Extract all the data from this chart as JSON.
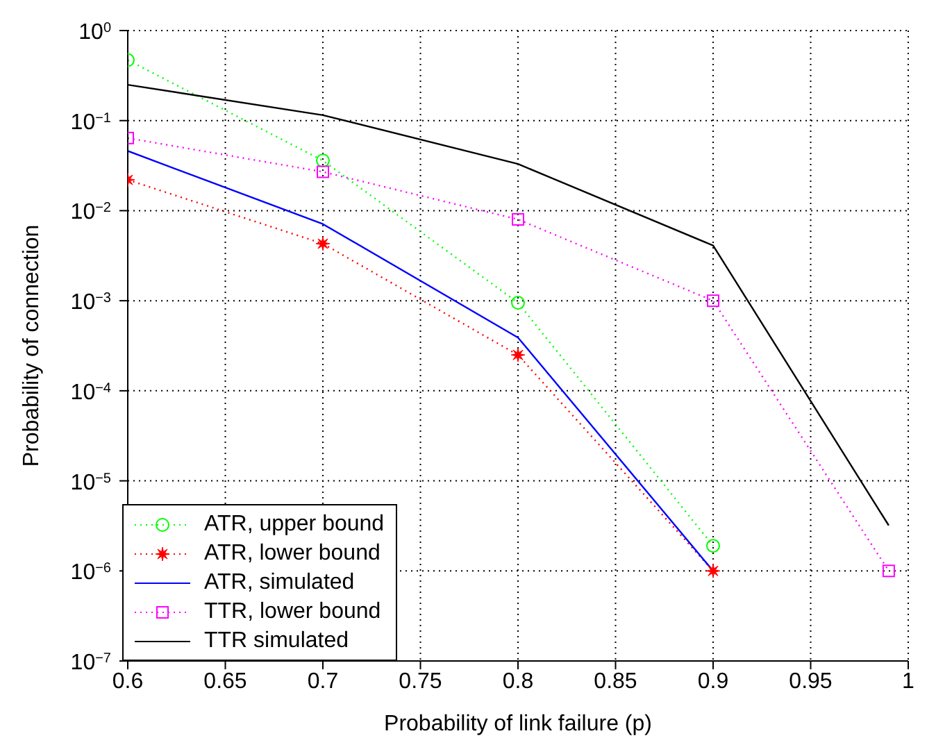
{
  "chart_data": {
    "type": "line",
    "xlabel": "Probability of link failure (p)",
    "ylabel": "Probability of connection",
    "log": "y",
    "grid": true,
    "legend": "bottom left",
    "xlim": [
      0.6,
      1
    ],
    "xticks": [
      0.6,
      0.65,
      0.7,
      0.75,
      0.8,
      0.85,
      0.9,
      0.95,
      1
    ],
    "ylim": [
      1e-07,
      1
    ],
    "yticks": [
      {
        "value": 1e-07,
        "label": "10$^{−7}$"
      },
      {
        "value": 1e-06,
        "label": "10$^{−6}$"
      },
      {
        "value": 1e-05,
        "label": "10$^{−5}$"
      },
      {
        "value": 0.0001,
        "label": "10$^{−4}$"
      },
      {
        "value": 0.001,
        "label": "10$^{−3}$"
      },
      {
        "value": 0.01,
        "label": "10$^{−2}$"
      },
      {
        "value": 0.1,
        "label": "10$^{−1}$"
      },
      {
        "value": 1,
        "label": "10$^{0}$"
      }
    ],
    "series": [
      {
        "name": "ATR, upper bound",
        "color": "#00ff00",
        "marker": "circle",
        "line_style": "dotted",
        "x": [
          0.6,
          0.7,
          0.8,
          0.9
        ],
        "values": [
          0.47,
          0.036,
          0.00095,
          1.9e-06
        ]
      },
      {
        "name": "ATR, lower bound",
        "color": "#ff0000",
        "marker": "star",
        "line_style": "dotted",
        "x": [
          0.6,
          0.7,
          0.8,
          0.9
        ],
        "values": [
          0.022,
          0.0043,
          0.00025,
          1e-06
        ]
      },
      {
        "name": "ATR, simulated",
        "color": "#0000ff",
        "marker": "none",
        "line_style": "solid",
        "x": [
          0.6,
          0.7,
          0.8,
          0.9
        ],
        "values": [
          0.046,
          0.0071,
          0.00039,
          1e-06
        ]
      },
      {
        "name": "TTR, lower bound",
        "color": "#ff00ff",
        "marker": "square",
        "line_style": "dotted",
        "x": [
          0.6,
          0.7,
          0.8,
          0.9,
          0.99
        ],
        "values": [
          0.064,
          0.027,
          0.008,
          0.001,
          1e-06
        ]
      },
      {
        "name": "TTR simulated",
        "color": "#000000",
        "marker": "none",
        "line_style": "solid",
        "x": [
          0.6,
          0.7,
          0.8,
          0.9,
          0.99
        ],
        "values": [
          0.25,
          0.115,
          0.033,
          0.0041,
          3.2e-06
        ]
      }
    ]
  }
}
